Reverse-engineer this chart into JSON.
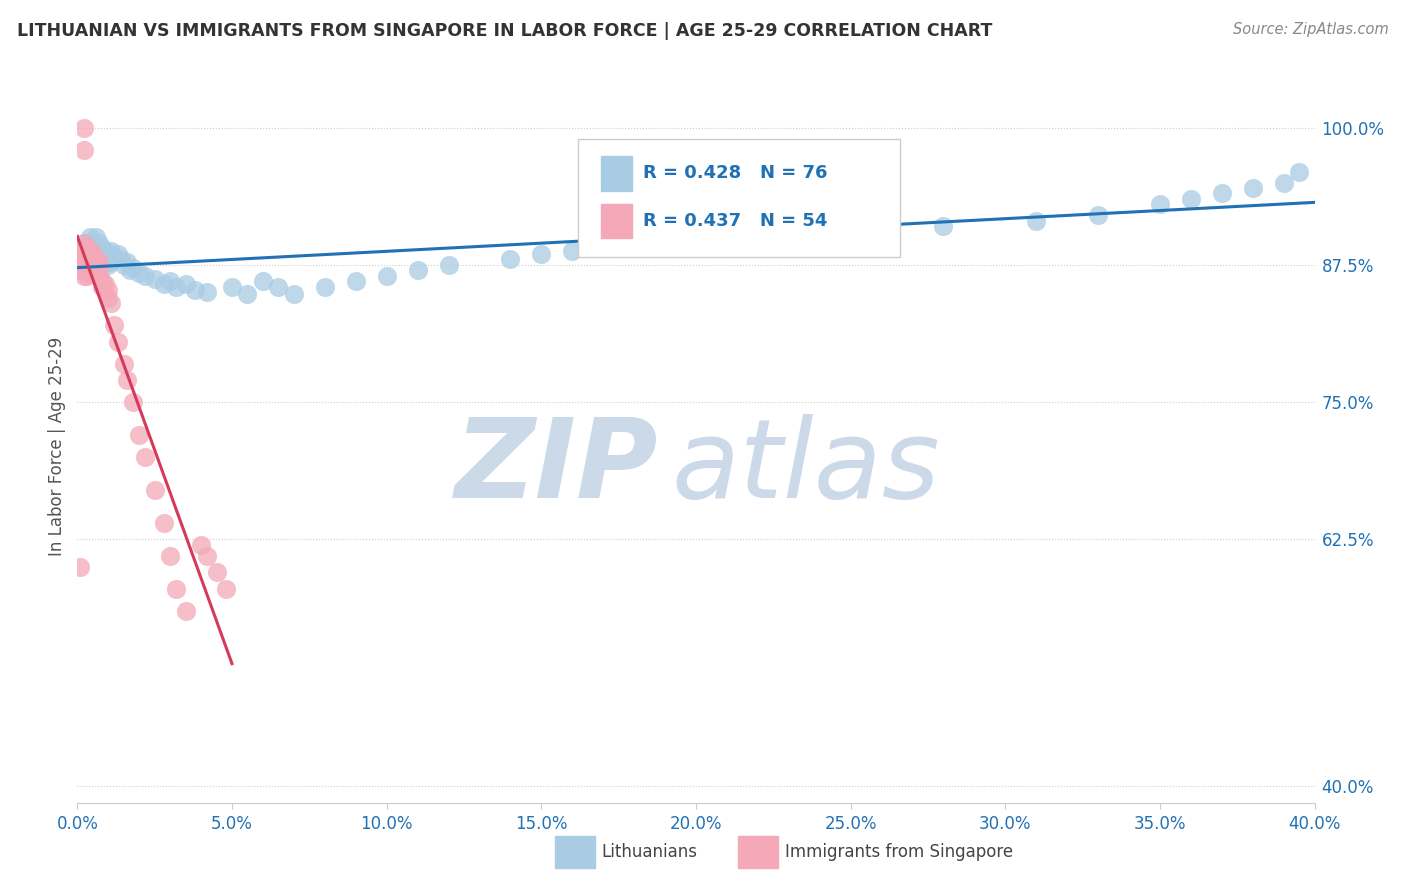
{
  "title": "LITHUANIAN VS IMMIGRANTS FROM SINGAPORE IN LABOR FORCE | AGE 25-29 CORRELATION CHART",
  "source": "Source: ZipAtlas.com",
  "ylabel": "In Labor Force | Age 25-29",
  "legend_label_blue": "Lithuanians",
  "legend_label_pink": "Immigrants from Singapore",
  "R_blue": 0.428,
  "N_blue": 76,
  "R_pink": 0.437,
  "N_pink": 54,
  "blue_color": "#a8cce4",
  "pink_color": "#f4a8b8",
  "blue_line_color": "#2171b5",
  "pink_line_color": "#d63a5a",
  "xmin": 0.0,
  "xmax": 0.4,
  "ymin": 0.385,
  "ymax": 1.035,
  "yticks": [
    0.4,
    0.625,
    0.75,
    0.875,
    1.0
  ],
  "background_color": "#ffffff",
  "watermark_zip": "ZIP",
  "watermark_atlas": "atlas",
  "watermark_color": "#ccd9e8",
  "blue_scatter_x": [
    0.001,
    0.001,
    0.002,
    0.002,
    0.002,
    0.002,
    0.003,
    0.003,
    0.003,
    0.003,
    0.003,
    0.003,
    0.004,
    0.004,
    0.004,
    0.004,
    0.004,
    0.005,
    0.005,
    0.005,
    0.006,
    0.006,
    0.006,
    0.007,
    0.007,
    0.008,
    0.008,
    0.008,
    0.009,
    0.009,
    0.01,
    0.01,
    0.011,
    0.011,
    0.012,
    0.013,
    0.014,
    0.015,
    0.016,
    0.017,
    0.018,
    0.02,
    0.022,
    0.025,
    0.028,
    0.03,
    0.032,
    0.035,
    0.038,
    0.042,
    0.05,
    0.055,
    0.06,
    0.065,
    0.07,
    0.08,
    0.09,
    0.1,
    0.11,
    0.12,
    0.14,
    0.15,
    0.16,
    0.18,
    0.2,
    0.22,
    0.25,
    0.28,
    0.31,
    0.33,
    0.35,
    0.36,
    0.37,
    0.38,
    0.39,
    0.395
  ],
  "blue_scatter_y": [
    0.88,
    0.875,
    0.895,
    0.885,
    0.875,
    0.87,
    0.895,
    0.89,
    0.885,
    0.88,
    0.875,
    0.87,
    0.9,
    0.89,
    0.885,
    0.88,
    0.875,
    0.895,
    0.885,
    0.88,
    0.9,
    0.89,
    0.885,
    0.895,
    0.885,
    0.89,
    0.885,
    0.875,
    0.888,
    0.878,
    0.885,
    0.875,
    0.888,
    0.878,
    0.882,
    0.885,
    0.88,
    0.875,
    0.878,
    0.87,
    0.872,
    0.868,
    0.865,
    0.862,
    0.858,
    0.86,
    0.855,
    0.858,
    0.852,
    0.85,
    0.855,
    0.848,
    0.86,
    0.855,
    0.848,
    0.855,
    0.86,
    0.865,
    0.87,
    0.875,
    0.88,
    0.885,
    0.888,
    0.892,
    0.895,
    0.9,
    0.905,
    0.91,
    0.915,
    0.92,
    0.93,
    0.935,
    0.94,
    0.945,
    0.95,
    0.96
  ],
  "pink_scatter_x": [
    0.001,
    0.001,
    0.001,
    0.001,
    0.001,
    0.002,
    0.002,
    0.002,
    0.002,
    0.002,
    0.002,
    0.003,
    0.003,
    0.003,
    0.003,
    0.003,
    0.003,
    0.004,
    0.004,
    0.004,
    0.004,
    0.004,
    0.005,
    0.005,
    0.005,
    0.006,
    0.006,
    0.007,
    0.007,
    0.007,
    0.008,
    0.008,
    0.009,
    0.01,
    0.01,
    0.011,
    0.012,
    0.013,
    0.015,
    0.016,
    0.018,
    0.02,
    0.022,
    0.025,
    0.028,
    0.03,
    0.032,
    0.035,
    0.04,
    0.042,
    0.045,
    0.048,
    0.002,
    0.002
  ],
  "pink_scatter_y": [
    0.89,
    0.88,
    0.875,
    0.87,
    0.6,
    0.895,
    0.885,
    0.88,
    0.875,
    0.87,
    0.865,
    0.89,
    0.885,
    0.88,
    0.875,
    0.87,
    0.865,
    0.888,
    0.883,
    0.878,
    0.873,
    0.868,
    0.885,
    0.88,
    0.875,
    0.88,
    0.87,
    0.878,
    0.872,
    0.865,
    0.86,
    0.855,
    0.858,
    0.852,
    0.845,
    0.84,
    0.82,
    0.805,
    0.785,
    0.77,
    0.75,
    0.72,
    0.7,
    0.67,
    0.64,
    0.61,
    0.58,
    0.56,
    0.62,
    0.61,
    0.595,
    0.58,
    1.0,
    0.98
  ]
}
